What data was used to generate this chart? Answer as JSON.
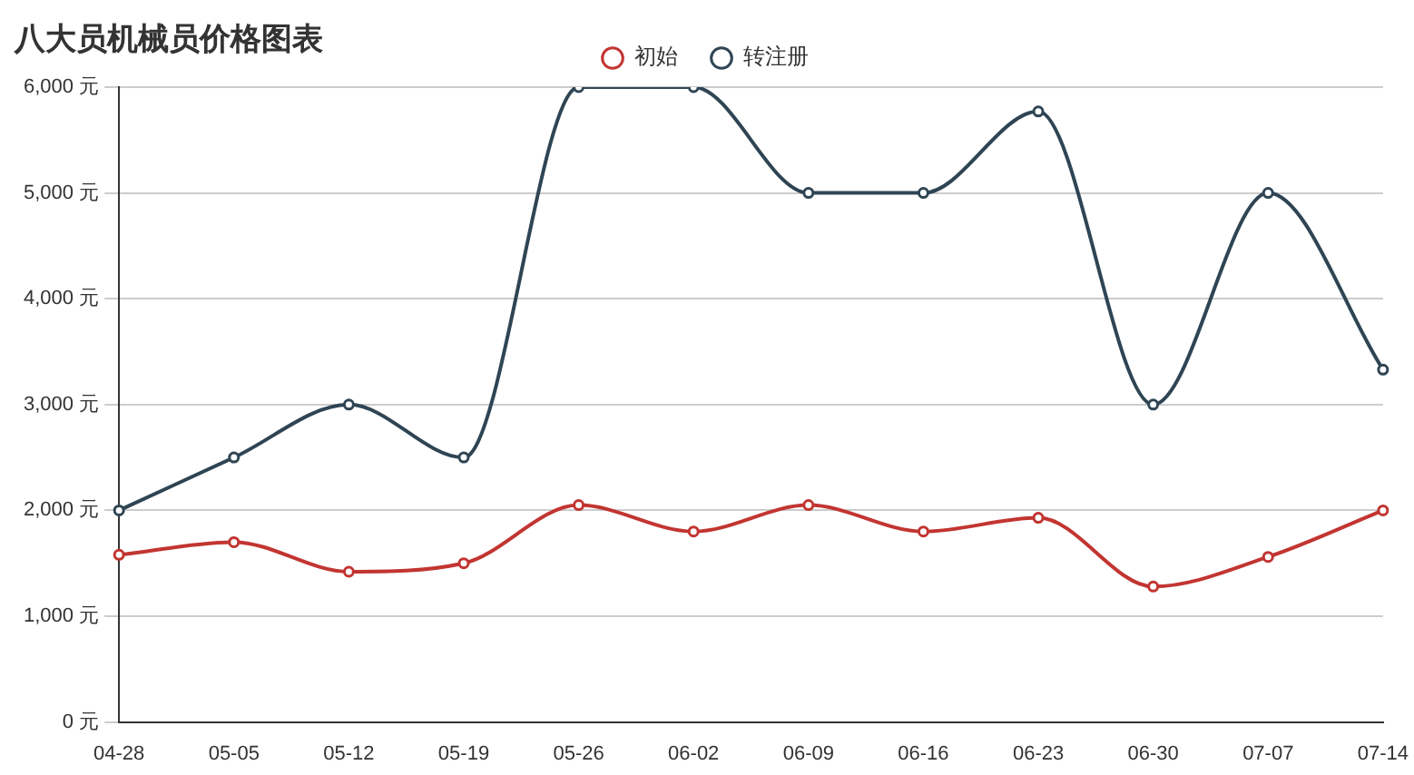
{
  "chart_data": {
    "type": "line",
    "title": "八大员机械员价格图表",
    "categories": [
      "04-28",
      "05-05",
      "05-12",
      "05-19",
      "05-26",
      "06-02",
      "06-09",
      "06-16",
      "06-23",
      "06-30",
      "07-07",
      "07-14"
    ],
    "series": [
      {
        "name": "初始",
        "color": "#c23531",
        "values": [
          1580,
          1700,
          1420,
          1500,
          2050,
          1800,
          2050,
          1800,
          1930,
          1280,
          1560,
          2000
        ]
      },
      {
        "name": "转注册",
        "color": "#2f4554",
        "values": [
          2000,
          2500,
          3000,
          2500,
          6000,
          6000,
          5000,
          5000,
          5770,
          3000,
          5000,
          3330
        ]
      }
    ],
    "ylim": [
      0,
      6000
    ],
    "yticks": [
      {
        "value": 0,
        "label": "0 元"
      },
      {
        "value": 1000,
        "label": "1,000 元"
      },
      {
        "value": 2000,
        "label": "2,000 元"
      },
      {
        "value": 3000,
        "label": "3,000 元"
      },
      {
        "value": 4000,
        "label": "4,000 元"
      },
      {
        "value": 5000,
        "label": "5,000 元"
      },
      {
        "value": 6000,
        "label": "6,000 元"
      }
    ],
    "grid": "y",
    "legend": "top",
    "marker": "circle",
    "line_style": "solid"
  }
}
